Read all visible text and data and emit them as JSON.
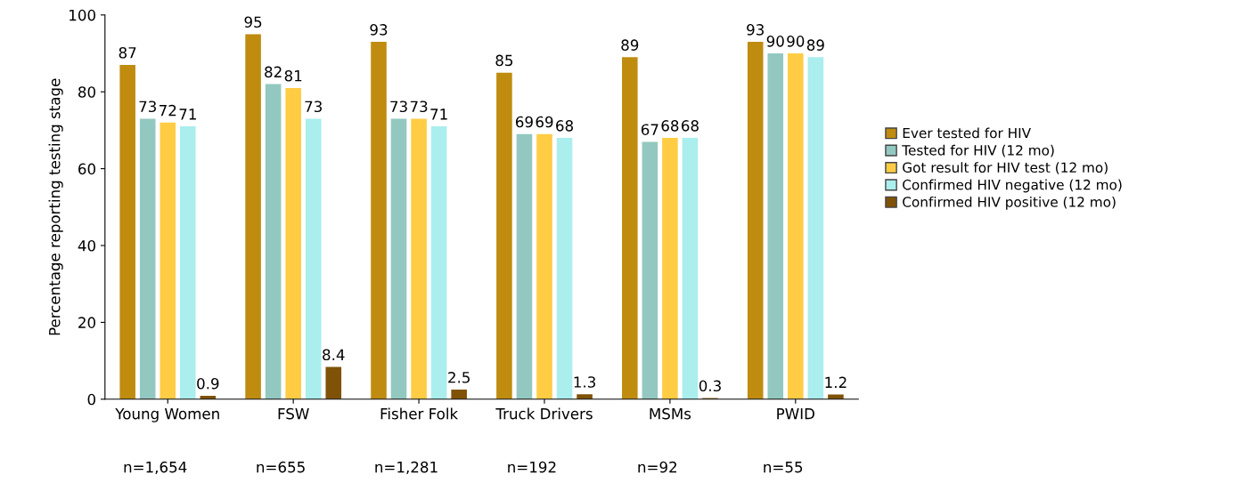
{
  "chart_data": {
    "type": "bar",
    "ylabel": "Percentage reporting testing stage",
    "categories": [
      "Young Women",
      "FSW",
      "Fisher Folk",
      "Truck Drivers",
      "MSMs",
      "PWID"
    ],
    "series": [
      {
        "name": "Ever tested for HIV",
        "color": "#bf8c10",
        "values": [
          87,
          95,
          93,
          85,
          89,
          93
        ]
      },
      {
        "name": "Tested for HIV (12 mo)",
        "color": "#92c8c0",
        "values": [
          73,
          82,
          73,
          69,
          67,
          90
        ]
      },
      {
        "name": "Got result for HIV test (12 mo)",
        "color": "#ffcc44",
        "values": [
          72,
          81,
          73,
          69,
          68,
          90
        ]
      },
      {
        "name": "Confirmed HIV negative (12 mo)",
        "color": "#aaeeed",
        "values": [
          71,
          73,
          71,
          68,
          68,
          89
        ]
      },
      {
        "name": "Confirmed HIV positive (12 mo)",
        "color": "#7f5207",
        "values": [
          0.9,
          8.4,
          2.5,
          1.3,
          0.3,
          1.2
        ]
      }
    ],
    "data_labels": true,
    "ylim": [
      0,
      100
    ],
    "yticks": [
      0,
      20,
      40,
      60,
      80,
      100
    ],
    "grid": false,
    "legend": "right",
    "annotations": [
      "n=1,654",
      "n=655",
      "n=1,281",
      "n=192",
      "n=92",
      "n=55"
    ]
  }
}
